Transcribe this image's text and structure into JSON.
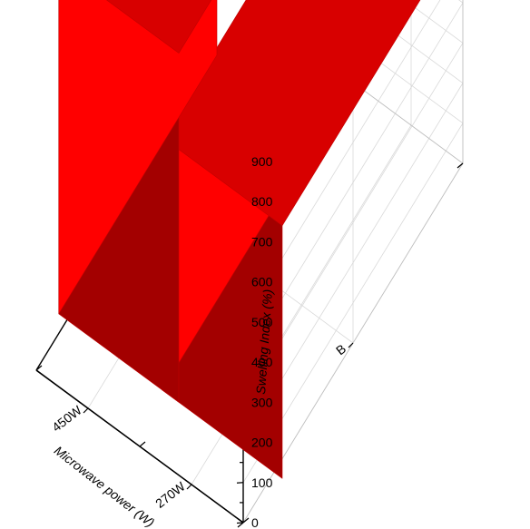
{
  "chart_data": {
    "type": "bar3d",
    "title": "",
    "x_axis": {
      "label": "Microwave power (W)",
      "categories": [
        "450W",
        "270W"
      ]
    },
    "y_axis": {
      "categories": [
        "B"
      ]
    },
    "z_axis": {
      "label": "Swelling Index (%)",
      "range": [
        0,
        900
      ],
      "ticks": [
        0,
        100,
        200,
        300,
        400,
        500,
        600,
        700,
        800,
        900
      ]
    },
    "series": [
      {
        "category_y": "B",
        "values": [
          {
            "x": "450W",
            "value": 870
          },
          {
            "x": "270W",
            "value": 630
          }
        ]
      }
    ],
    "grid": true,
    "colors": {
      "bar_front": "#ff0000",
      "bar_side": "#a30000",
      "bar_top": "#d80000",
      "grid": "#d9d9d9",
      "axis": "#000000"
    }
  }
}
